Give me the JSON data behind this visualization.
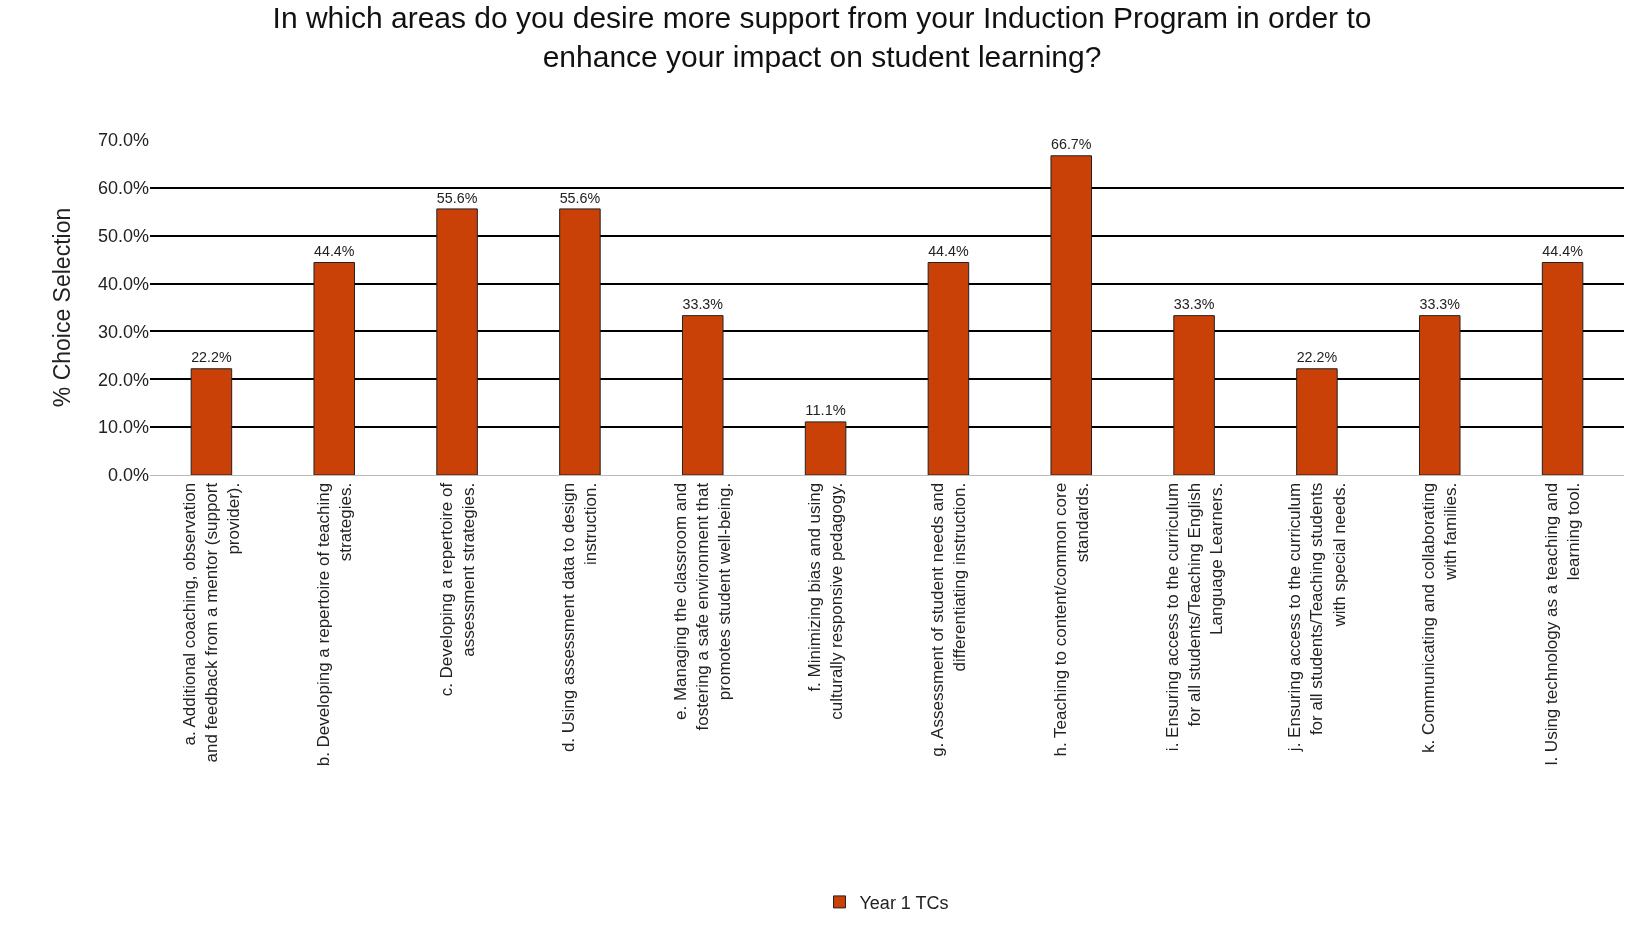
{
  "chart_data": {
    "type": "bar",
    "title": "In which areas do you desire more support from your Induction Program in order to enhance your impact on student learning?",
    "ylabel": "% Choice Selection",
    "categories": [
      "a. Additional coaching, observation and feedback from a mentor (support provider).",
      "b. Developing a repertoire of teaching strategies.",
      "c. Developing a repertoire of assessment strategies.",
      "d. Using assessment data to design instruction.",
      "e. Managing the classroom and fostering a safe environment that promotes student well-being.",
      "f. Minimizing bias and using culturally responsive pedagogy.",
      "g. Assessment of student needs and differentiating instruction.",
      "h. Teaching to content/common core standards.",
      "i. Ensuring access to the curriculum for all students/Teaching English Language Learners.",
      "j. Ensuring access to the curriculum for all students/Teaching students with special needs.",
      "k. Communicating and collaborating with families.",
      "l. Using technology as a teaching and learning tool."
    ],
    "series": [
      {
        "name": "Year 1 TCs",
        "color": "#c94106",
        "values": [
          22.2,
          44.4,
          55.6,
          55.6,
          33.3,
          11.1,
          44.4,
          66.7,
          33.3,
          22.2,
          33.3,
          44.4
        ],
        "value_labels": [
          "22.2%",
          "44.4%",
          "55.6%",
          "55.6%",
          "33.3%",
          "11.1%",
          "44.4%",
          "66.7%",
          "33.3%",
          "22.2%",
          "33.3%",
          "44.4%"
        ]
      }
    ],
    "ylim": [
      0,
      70
    ],
    "yticks": [
      {
        "value": 0,
        "label": "0.0%"
      },
      {
        "value": 10,
        "label": "10.0%"
      },
      {
        "value": 20,
        "label": "20.0%"
      },
      {
        "value": 30,
        "label": "30.0%"
      },
      {
        "value": 40,
        "label": "40.0%"
      },
      {
        "value": 50,
        "label": "50.0%"
      },
      {
        "value": 60,
        "label": "60.0%"
      },
      {
        "value": 70,
        "label": "70.0%"
      }
    ],
    "grid": "y",
    "legend": "bottom"
  }
}
